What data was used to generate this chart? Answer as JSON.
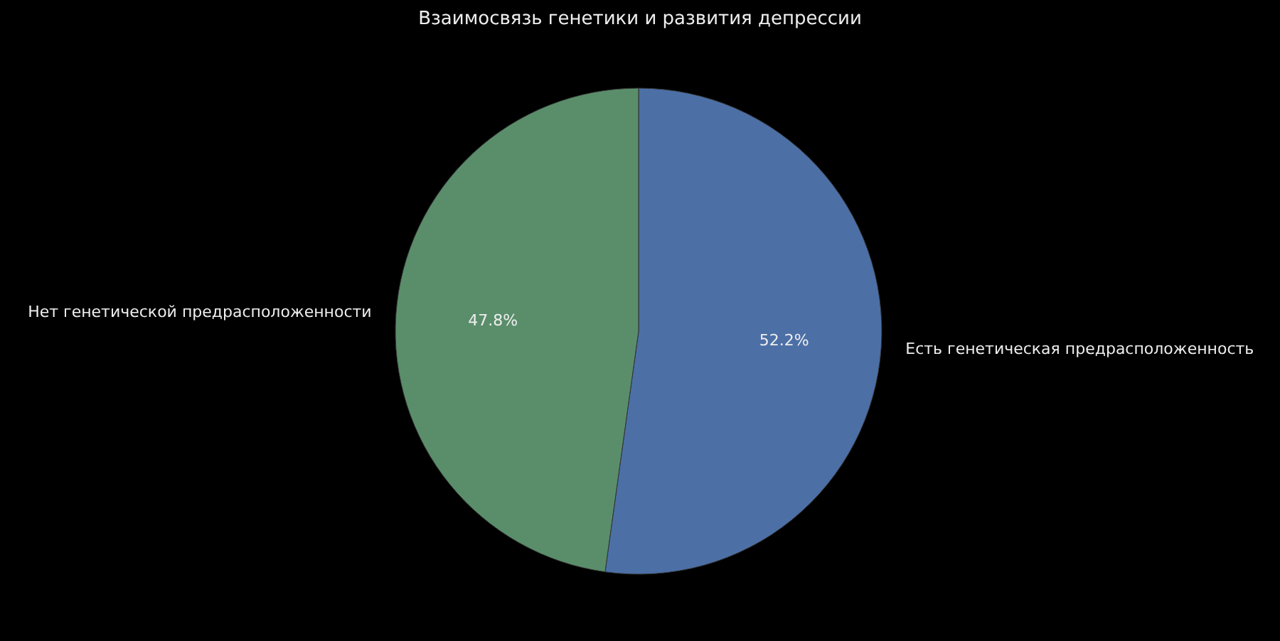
{
  "chart_data": {
    "type": "pie",
    "title": "Взаимосвязь генетики и развития депрессии",
    "categories": [
      "Есть генетическая предрасположенность",
      "Нет генетической предрасположенности"
    ],
    "values": [
      52.2,
      47.8
    ],
    "colors": [
      "#4c6fa6",
      "#5a8e6b"
    ],
    "value_labels": [
      "52.2%",
      "47.8%"
    ]
  }
}
